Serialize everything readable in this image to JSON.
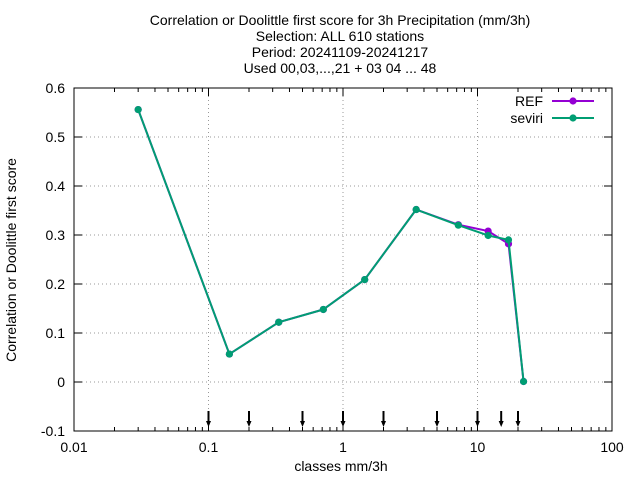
{
  "chart_data": {
    "type": "line",
    "title_lines": [
      "Correlation or Doolittle first score  for 3h Precipitation (mm/3h)",
      "Selection: ALL    610 stations",
      "Period: 20241109-20241217",
      "Used 00,03,...,21 + 03 04 ... 48"
    ],
    "xlabel": "classes mm/3h",
    "ylabel": "Correlation or Doolittle first score",
    "x_scale": "log",
    "xlim": [
      0.01,
      100
    ],
    "ylim": [
      -0.1,
      0.6
    ],
    "x_ticks": [
      {
        "value": 0.01,
        "label": "0.01"
      },
      {
        "value": 0.1,
        "label": "0.1"
      },
      {
        "value": 1,
        "label": "1"
      },
      {
        "value": 10,
        "label": "10"
      },
      {
        "value": 100,
        "label": "100"
      }
    ],
    "y_ticks": [
      {
        "value": -0.1,
        "label": "-0.1"
      },
      {
        "value": 0,
        "label": "0"
      },
      {
        "value": 0.1,
        "label": "0.1"
      },
      {
        "value": 0.2,
        "label": "0.2"
      },
      {
        "value": 0.3,
        "label": "0.3"
      },
      {
        "value": 0.4,
        "label": "0.4"
      },
      {
        "value": 0.5,
        "label": "0.5"
      },
      {
        "value": 0.6,
        "label": "0.6"
      }
    ],
    "grid": true,
    "legend_position": "top-right",
    "threshold_markers": [
      0.1,
      0.2,
      0.5,
      1,
      2,
      5,
      10,
      15,
      20
    ],
    "series": [
      {
        "name": "REF",
        "color": "#9400d3",
        "x": [
          0.03,
          0.143,
          0.333,
          0.714,
          1.45,
          3.5,
          7.2,
          12,
          17,
          22
        ],
        "y": [
          0.556,
          0.057,
          0.122,
          0.148,
          0.209,
          0.352,
          0.321,
          0.308,
          0.282,
          0.001
        ]
      },
      {
        "name": "seviri",
        "color": "#009e73",
        "x": [
          0.03,
          0.143,
          0.333,
          0.714,
          1.45,
          3.5,
          7.2,
          12,
          17,
          22
        ],
        "y": [
          0.556,
          0.057,
          0.122,
          0.148,
          0.209,
          0.352,
          0.32,
          0.299,
          0.29,
          0.001
        ]
      }
    ]
  }
}
